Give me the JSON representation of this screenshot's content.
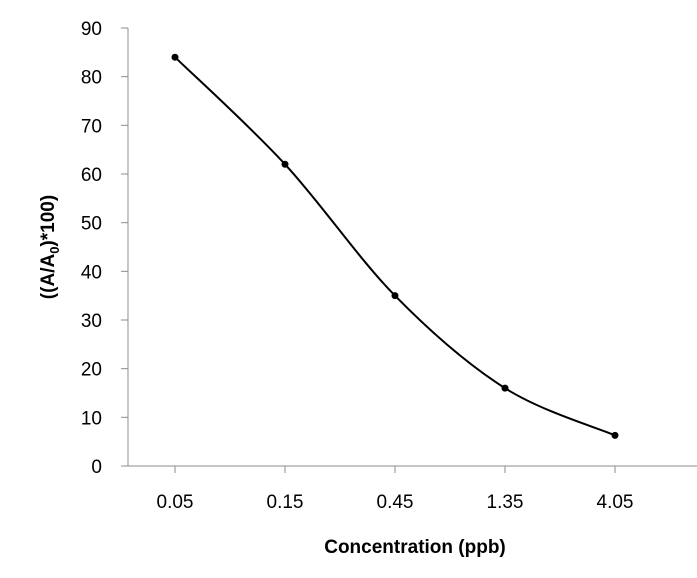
{
  "chart_data": {
    "type": "line",
    "smooth": true,
    "categories": [
      "0.05",
      "0.15",
      "0.45",
      "1.35",
      "4.05"
    ],
    "series": [
      {
        "values": [
          84,
          62,
          35,
          16,
          6.3
        ]
      }
    ],
    "xlabel": "Concentration (ppb)",
    "ylabel": {
      "prefix": "((A/A",
      "subscript": "0",
      "suffix": ")*100)"
    },
    "ylim": [
      0,
      90
    ],
    "yticks": [
      "0",
      "10",
      "20",
      "30",
      "40",
      "50",
      "60",
      "70",
      "80",
      "90"
    ],
    "grid": false,
    "legend": "none",
    "colors": {
      "series": "#000000",
      "axis": "#8c8c8c"
    }
  }
}
